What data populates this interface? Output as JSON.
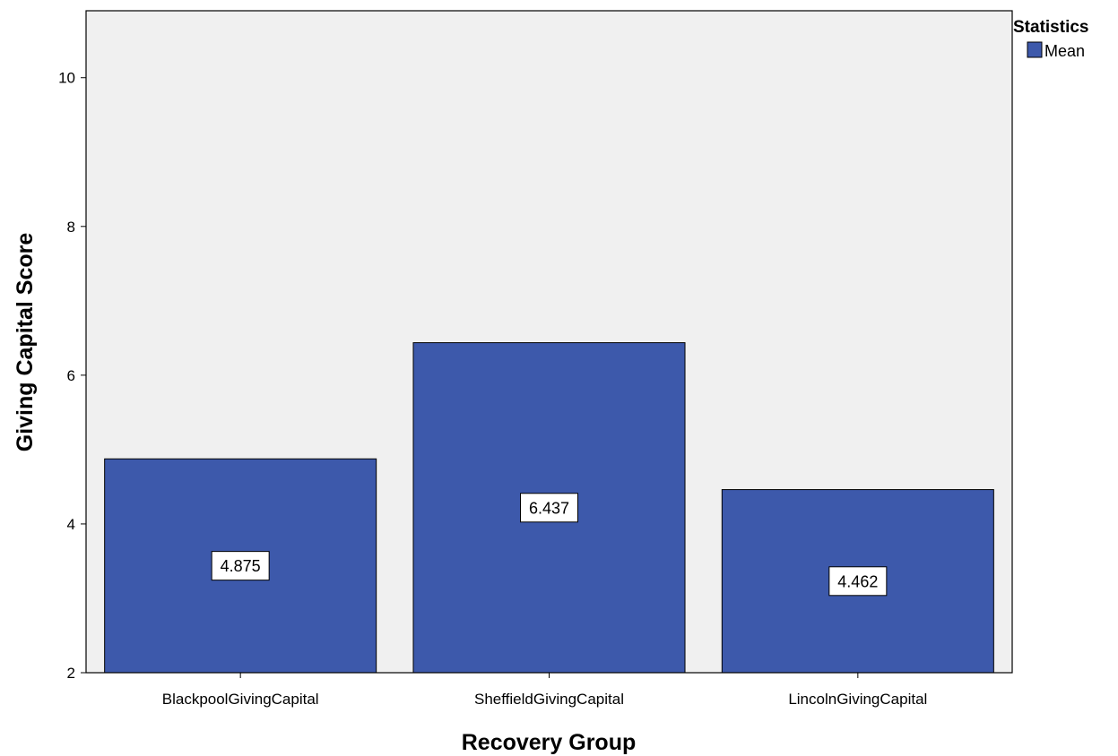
{
  "chart_data": {
    "type": "bar",
    "categories": [
      "BlackpoolGivingCapital",
      "SheffieldGivingCapital",
      "LincolnGivingCapital"
    ],
    "series": [
      {
        "name": "Mean",
        "values": [
          4.875,
          6.437,
          4.462
        ],
        "color": "#3d59ab"
      }
    ],
    "data_labels": [
      "4.875",
      "6.437",
      "4.462"
    ],
    "xlabel": "Recovery Group",
    "ylabel": "Giving Capital Score",
    "ylim": [
      2,
      10.9
    ],
    "yticks": [
      2,
      4,
      6,
      8,
      10
    ],
    "grid": false,
    "legend": {
      "title": "Statistics",
      "placement": "top-right"
    },
    "plot_background": "#f0f0f0",
    "bar_color": "#3d59ab"
  }
}
